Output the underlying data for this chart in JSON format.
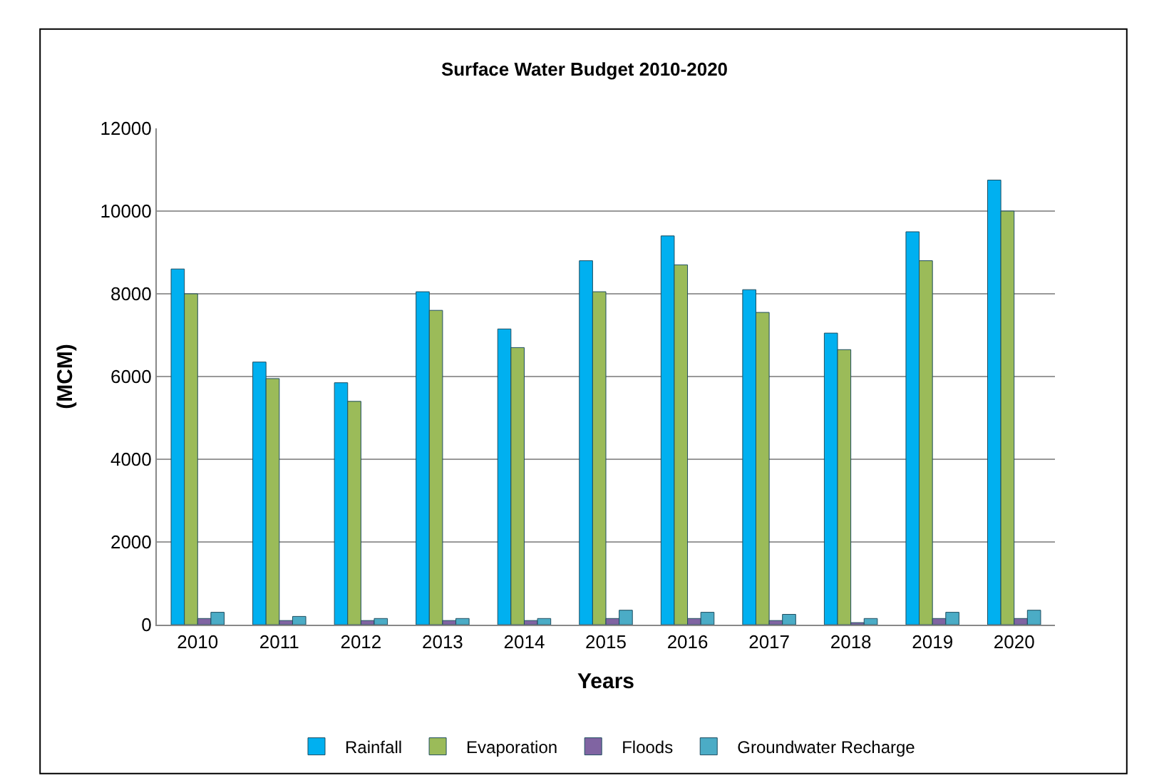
{
  "chart_data": {
    "type": "bar",
    "title": "Surface Water Budget 2010-2020",
    "xlabel": "Years",
    "ylabel": "(MCM)",
    "categories": [
      "2010",
      "2011",
      "2012",
      "2013",
      "2014",
      "2015",
      "2016",
      "2017",
      "2018",
      "2019",
      "2020"
    ],
    "series": [
      {
        "name": "Rainfall",
        "color": "#00b0f0",
        "values": [
          8600,
          6350,
          5850,
          8050,
          7150,
          8800,
          9400,
          8100,
          7050,
          9500,
          10750
        ]
      },
      {
        "name": "Evaporation",
        "color": "#9bbb59",
        "values": [
          8000,
          5950,
          5400,
          7600,
          6700,
          8050,
          8700,
          7550,
          6650,
          8800,
          10000
        ]
      },
      {
        "name": "Floods",
        "color": "#8064a2",
        "values": [
          150,
          100,
          100,
          100,
          100,
          150,
          150,
          100,
          50,
          150,
          150
        ]
      },
      {
        "name": "Groundwater Recharge",
        "color": "#4bacc6",
        "values": [
          300,
          200,
          150,
          150,
          150,
          350,
          300,
          250,
          150,
          300,
          350
        ]
      }
    ],
    "ylim": [
      0,
      12000
    ],
    "yticks": [
      0,
      2000,
      4000,
      6000,
      8000,
      10000,
      12000
    ],
    "grid": "y",
    "legend": "bottom"
  }
}
